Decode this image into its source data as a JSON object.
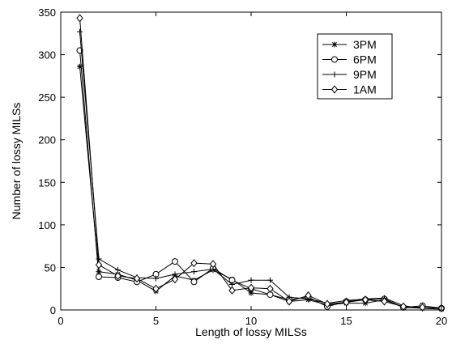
{
  "chart_data": {
    "type": "line",
    "title": "",
    "xlabel": "Length of lossy MILSs",
    "ylabel": "Number of lossy MILSs",
    "xlim": [
      0,
      20
    ],
    "ylim": [
      0,
      350
    ],
    "xticks": [
      0,
      5,
      10,
      15,
      20
    ],
    "yticks": [
      0,
      50,
      100,
      150,
      200,
      250,
      300,
      350
    ],
    "grid": false,
    "legend_position": "top-right",
    "x": [
      1,
      2,
      3,
      4,
      5,
      6,
      7,
      8,
      9,
      10,
      11,
      12,
      13,
      14,
      15,
      16,
      17,
      18,
      19,
      20
    ],
    "series": [
      {
        "name": "3PM",
        "marker": "asterisk",
        "values": [
          286,
          45,
          42,
          35,
          22,
          40,
          35,
          47,
          36,
          20,
          18,
          10,
          12,
          6,
          8,
          8,
          12,
          3,
          2,
          1
        ]
      },
      {
        "name": "6PM",
        "marker": "circle",
        "values": [
          305,
          39,
          38,
          33,
          42,
          57,
          33,
          49,
          35,
          25,
          18,
          12,
          15,
          4,
          10,
          12,
          13,
          3,
          5,
          2
        ]
      },
      {
        "name": "9PM",
        "marker": "plus",
        "values": [
          327,
          60,
          47,
          38,
          37,
          42,
          45,
          48,
          30,
          35,
          35,
          15,
          13,
          8,
          11,
          13,
          14,
          5,
          2,
          3
        ]
      },
      {
        "name": "1AM",
        "marker": "diamond",
        "values": [
          343,
          53,
          40,
          37,
          25,
          36,
          55,
          54,
          23,
          26,
          25,
          10,
          17,
          7,
          9,
          12,
          10,
          4,
          3,
          2
        ]
      }
    ]
  }
}
